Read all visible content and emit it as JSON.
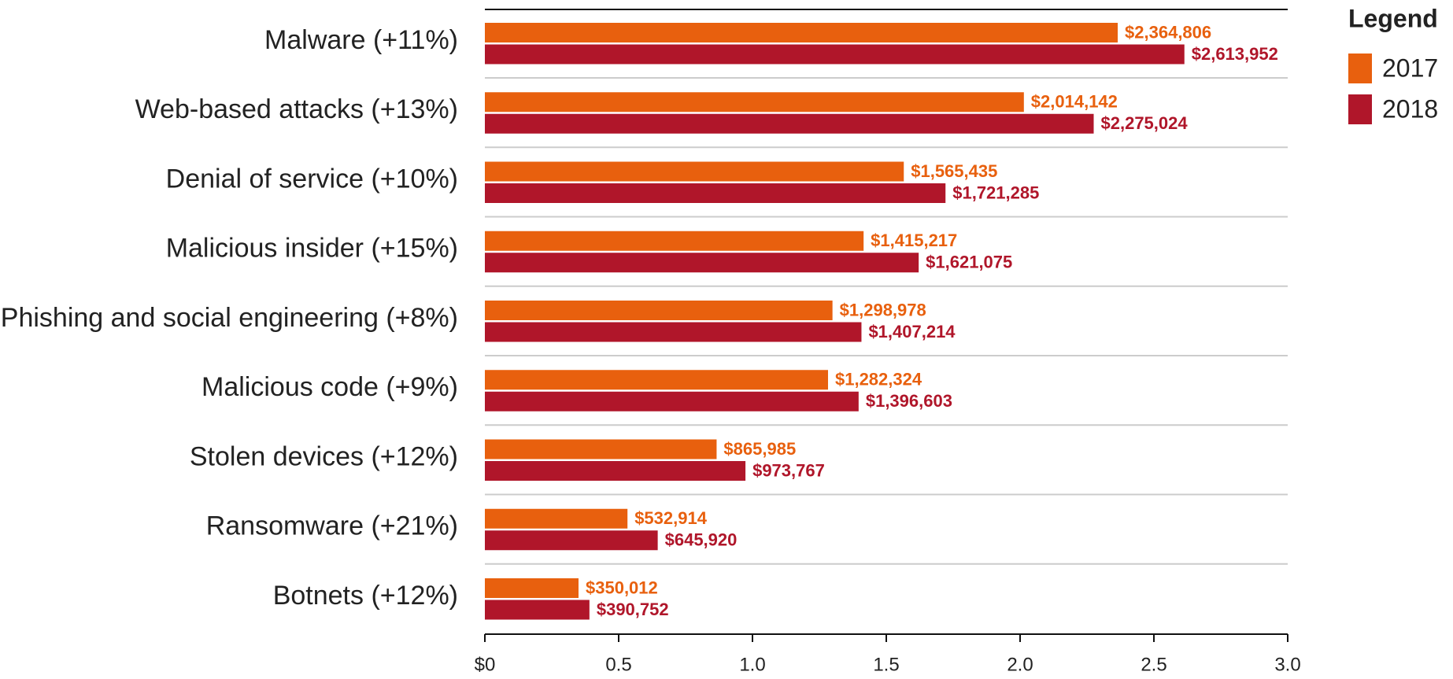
{
  "chart_data": {
    "type": "bar",
    "orientation": "horizontal",
    "categories": [
      "Malware (+11%)",
      "Web-based attacks (+13%)",
      "Denial of service (+10%)",
      "Malicious insider (+15%)",
      "Phishing and social engineering (+8%)",
      "Malicious code (+9%)",
      "Stolen devices (+12%)",
      "Ransomware (+21%)",
      "Botnets (+12%)"
    ],
    "series": [
      {
        "name": "2017",
        "color": "#e8600e",
        "values": [
          2.364806,
          2.014142,
          1.565435,
          1.415217,
          1.298978,
          1.282324,
          0.865985,
          0.532914,
          0.350012
        ],
        "value_labels": [
          "$2,364,806",
          "$2,014,142",
          "$1,565,435",
          "$1,415,217",
          "$1,298,978",
          "$1,282,324",
          "$865,985",
          "$532,914",
          "$350,012"
        ]
      },
      {
        "name": "2018",
        "color": "#b0162a",
        "values": [
          2.613952,
          2.275024,
          1.721285,
          1.621075,
          1.407214,
          1.396603,
          0.973767,
          0.64592,
          0.390752
        ],
        "value_labels": [
          "$2,613,952",
          "$2,275,024",
          "$1,721,285",
          "$1,621,075",
          "$1,407,214",
          "$1,396,603",
          "$973,767",
          "$645,920",
          "$390,752"
        ]
      }
    ],
    "xlim": [
      0,
      3
    ],
    "xticks": [
      {
        "value": 0,
        "label": "$0"
      },
      0.5,
      {
        "value": 1,
        "label": "1.0"
      },
      1.5,
      {
        "value": 2,
        "label": "2.0"
      },
      2.5,
      {
        "value": 3,
        "label": "3.0"
      }
    ],
    "legend_title": "Legend",
    "legend": "top-right"
  }
}
